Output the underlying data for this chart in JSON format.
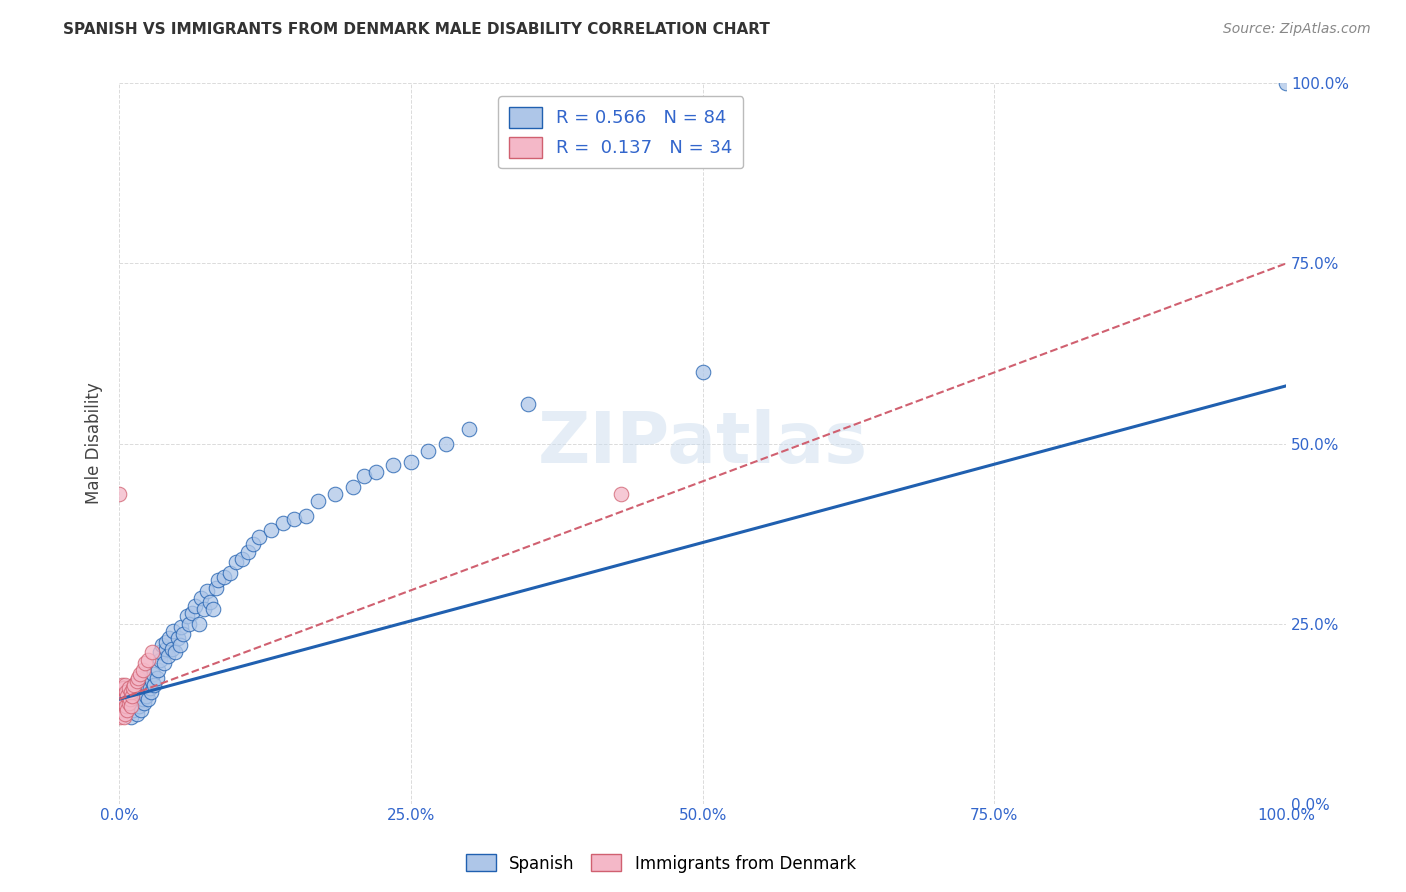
{
  "title": "SPANISH VS IMMIGRANTS FROM DENMARK MALE DISABILITY CORRELATION CHART",
  "source": "Source: ZipAtlas.com",
  "ylabel": "Male Disability",
  "watermark": "ZIPatlas",
  "legend1_r": "0.566",
  "legend1_n": "84",
  "legend2_r": "0.137",
  "legend2_n": "34",
  "xlim": [
    0,
    1
  ],
  "ylim": [
    0,
    1
  ],
  "xticks": [
    0.0,
    0.25,
    0.5,
    0.75,
    1.0
  ],
  "xtick_labels": [
    "0.0%",
    "25.0%",
    "50.0%",
    "75.0%",
    "100.0%"
  ],
  "yticks": [
    0.0,
    0.25,
    0.5,
    0.75,
    1.0
  ],
  "ytick_labels": [
    "0.0%",
    "25.0%",
    "50.0%",
    "75.0%",
    "100.0%"
  ],
  "spanish_color": "#aec6e8",
  "denmark_color": "#f4b8c8",
  "trend_spanish_color": "#2060b0",
  "trend_denmark_color": "#d06070",
  "background_color": "#ffffff",
  "grid_color": "#cccccc",
  "spanish_x": [
    0.005,
    0.007,
    0.008,
    0.01,
    0.01,
    0.011,
    0.012,
    0.013,
    0.013,
    0.014,
    0.015,
    0.015,
    0.016,
    0.017,
    0.017,
    0.018,
    0.018,
    0.019,
    0.02,
    0.02,
    0.021,
    0.022,
    0.022,
    0.023,
    0.024,
    0.025,
    0.026,
    0.027,
    0.028,
    0.029,
    0.03,
    0.032,
    0.033,
    0.035,
    0.035,
    0.037,
    0.038,
    0.04,
    0.04,
    0.042,
    0.043,
    0.045,
    0.046,
    0.048,
    0.05,
    0.052,
    0.053,
    0.055,
    0.058,
    0.06,
    0.062,
    0.065,
    0.068,
    0.07,
    0.073,
    0.075,
    0.078,
    0.08,
    0.083,
    0.085,
    0.09,
    0.095,
    0.1,
    0.105,
    0.11,
    0.115,
    0.12,
    0.13,
    0.14,
    0.15,
    0.16,
    0.17,
    0.185,
    0.2,
    0.21,
    0.22,
    0.235,
    0.25,
    0.265,
    0.28,
    0.3,
    0.35,
    0.5,
    1.0
  ],
  "spanish_y": [
    0.13,
    0.15,
    0.16,
    0.12,
    0.155,
    0.14,
    0.13,
    0.145,
    0.165,
    0.155,
    0.125,
    0.15,
    0.14,
    0.135,
    0.16,
    0.145,
    0.17,
    0.13,
    0.145,
    0.165,
    0.14,
    0.155,
    0.175,
    0.15,
    0.165,
    0.145,
    0.16,
    0.155,
    0.17,
    0.18,
    0.165,
    0.175,
    0.185,
    0.2,
    0.21,
    0.22,
    0.195,
    0.215,
    0.225,
    0.205,
    0.23,
    0.215,
    0.24,
    0.21,
    0.23,
    0.22,
    0.245,
    0.235,
    0.26,
    0.25,
    0.265,
    0.275,
    0.25,
    0.285,
    0.27,
    0.295,
    0.28,
    0.27,
    0.3,
    0.31,
    0.315,
    0.32,
    0.335,
    0.34,
    0.35,
    0.36,
    0.37,
    0.38,
    0.39,
    0.395,
    0.4,
    0.42,
    0.43,
    0.44,
    0.455,
    0.46,
    0.47,
    0.475,
    0.49,
    0.5,
    0.52,
    0.555,
    0.6,
    1.0
  ],
  "danish_x": [
    0.0,
    0.001,
    0.002,
    0.002,
    0.003,
    0.003,
    0.003,
    0.004,
    0.004,
    0.004,
    0.005,
    0.005,
    0.005,
    0.006,
    0.006,
    0.007,
    0.007,
    0.008,
    0.008,
    0.009,
    0.01,
    0.01,
    0.011,
    0.012,
    0.013,
    0.015,
    0.016,
    0.018,
    0.02,
    0.022,
    0.025,
    0.028,
    0.43,
    0.0
  ],
  "danish_y": [
    0.14,
    0.12,
    0.155,
    0.165,
    0.13,
    0.145,
    0.16,
    0.12,
    0.14,
    0.16,
    0.125,
    0.145,
    0.165,
    0.135,
    0.155,
    0.13,
    0.15,
    0.14,
    0.16,
    0.145,
    0.135,
    0.155,
    0.15,
    0.16,
    0.165,
    0.17,
    0.175,
    0.18,
    0.185,
    0.195,
    0.2,
    0.21,
    0.43,
    0.43
  ],
  "trend_sp_x0": 0.0,
  "trend_sp_y0": 0.145,
  "trend_sp_x1": 1.0,
  "trend_sp_y1": 0.58,
  "trend_dk_x0": 0.0,
  "trend_dk_y0": 0.145,
  "trend_dk_x1": 1.0,
  "trend_dk_y1": 0.75
}
